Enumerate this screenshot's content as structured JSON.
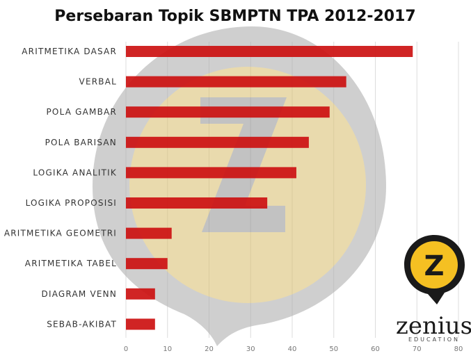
{
  "chart_data": {
    "type": "bar",
    "orientation": "horizontal",
    "title": "Persebaran Topik SBMPTN TPA 2012-2017",
    "categories": [
      "ARITMETIKA DASAR",
      "VERBAL",
      "POLA GAMBAR",
      "POLA BARISAN",
      "LOGIKA ANALITIK",
      "LOGIKA PROPOSISI",
      "ARITMETIKA GEOMETRI",
      "ARITMETIKA TABEL",
      "DIAGRAM VENN",
      "SEBAB-AKIBAT"
    ],
    "values": [
      69,
      53,
      49,
      44,
      41,
      34,
      11,
      10,
      7,
      7
    ],
    "xlim": [
      0,
      80
    ],
    "xticks": [
      "0",
      "10",
      "20",
      "30",
      "40",
      "50",
      "60",
      "70",
      "80"
    ],
    "grid": true,
    "bar_color": "#cc1111"
  },
  "logo": {
    "badge_letter": "Z",
    "wordmark": "zenius",
    "tagline": "EDUCATION"
  },
  "colors": {
    "bar": "#cc1111",
    "watermark_gray": "#b0b0b0",
    "watermark_yellow": "#ffd24a",
    "logo_yellow": "#f5c022",
    "logo_dark": "#1a1a1a"
  }
}
